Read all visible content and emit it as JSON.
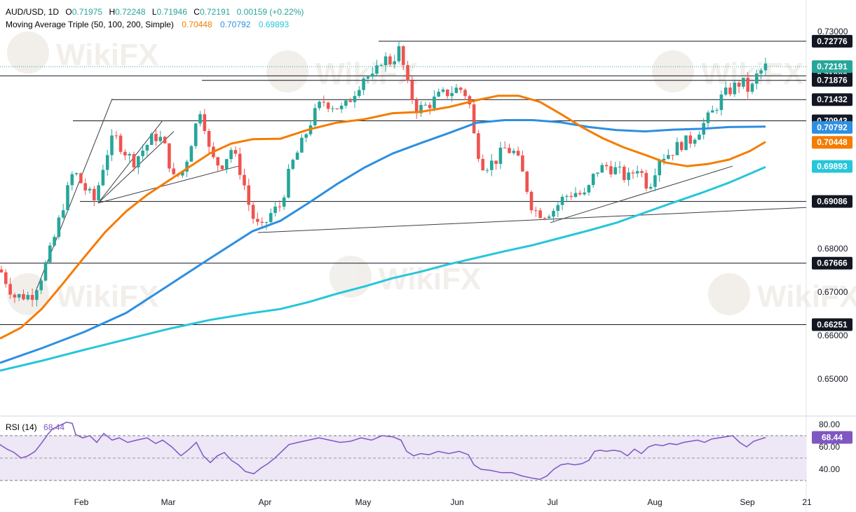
{
  "header": {
    "symbol": "AUD/USD, 1D",
    "o_label": "O",
    "o_value": "0.71975",
    "h_label": "H",
    "h_value": "0.72248",
    "l_label": "L",
    "l_value": "0.71946",
    "c_label": "C",
    "c_value": "0.72191",
    "change": "0.00159 (+0.22%)",
    "ma_title": "Moving Average Triple (50, 100, 200, Simple)",
    "ma_values": [
      "0.70448",
      "0.70792",
      "0.69893"
    ]
  },
  "colors": {
    "up": "#26a69a",
    "down": "#ef5350",
    "ma50": "#f57c00",
    "ma100": "#2e8fe0",
    "ma200": "#26c6da",
    "rsi": "#7e57c2",
    "rsi_band": "#ede7f6",
    "label_dark": "#131722",
    "watermark": "#e8e3dc"
  },
  "watermark": {
    "text": "WikiFX"
  },
  "chart_data": {
    "type": "candlestick",
    "timeframe": "1D",
    "x_ticks": [
      "Feb",
      "Mar",
      "Apr",
      "May",
      "Jun",
      "Jul",
      "Aug",
      "Sep",
      "21"
    ],
    "price_axis": {
      "ticks": [
        "0.73000",
        "0.68000",
        "0.67000",
        "0.66000",
        "0.65000"
      ],
      "range": [
        0.647,
        0.734
      ]
    },
    "levels": [
      {
        "label": "0.72776",
        "value": 0.72776
      },
      {
        "label": "0.71980",
        "value": 0.7198
      },
      {
        "label": "0.71876",
        "value": 0.71876
      },
      {
        "label": "0.71432",
        "value": 0.71432
      },
      {
        "label": "0.70943",
        "value": 0.70943
      },
      {
        "label": "0.69086",
        "value": 0.69086
      },
      {
        "label": "0.67666",
        "value": 0.67666
      },
      {
        "label": "0.66251",
        "value": 0.66251
      }
    ],
    "current_price": {
      "label": "0.72191",
      "value": 0.72191
    },
    "ma_labels": [
      {
        "label": "0.70792",
        "value": 0.70792,
        "series": "ma100"
      },
      {
        "label": "0.70448",
        "value": 0.70448,
        "series": "ma50"
      },
      {
        "label": "0.69893",
        "value": 0.69893,
        "series": "ma200"
      }
    ],
    "moving_averages": {
      "ma50": [
        [
          0,
          0.6593
        ],
        [
          30,
          0.6618
        ],
        [
          60,
          0.6662
        ],
        [
          90,
          0.672
        ],
        [
          120,
          0.678
        ],
        [
          150,
          0.6838
        ],
        [
          180,
          0.6886
        ],
        [
          210,
          0.6924
        ],
        [
          240,
          0.6956
        ],
        [
          270,
          0.6988
        ],
        [
          300,
          0.702
        ],
        [
          330,
          0.7042
        ],
        [
          360,
          0.7052
        ],
        [
          400,
          0.7053
        ],
        [
          440,
          0.7074
        ],
        [
          480,
          0.709
        ],
        [
          520,
          0.7098
        ],
        [
          560,
          0.7112
        ],
        [
          600,
          0.7115
        ],
        [
          640,
          0.7126
        ],
        [
          680,
          0.7142
        ],
        [
          710,
          0.7152
        ],
        [
          740,
          0.7152
        ],
        [
          770,
          0.7138
        ],
        [
          800,
          0.711
        ],
        [
          830,
          0.708
        ],
        [
          860,
          0.7054
        ],
        [
          890,
          0.7033
        ],
        [
          920,
          0.7016
        ],
        [
          950,
          0.6998
        ],
        [
          980,
          0.699
        ],
        [
          1010,
          0.6995
        ],
        [
          1040,
          0.7005
        ],
        [
          1070,
          0.7025
        ],
        [
          1092,
          0.7046
        ]
      ],
      "ma100": [
        [
          0,
          0.6537
        ],
        [
          60,
          0.6571
        ],
        [
          120,
          0.6608
        ],
        [
          180,
          0.6652
        ],
        [
          240,
          0.6715
        ],
        [
          300,
          0.6778
        ],
        [
          360,
          0.684
        ],
        [
          400,
          0.6864
        ],
        [
          440,
          0.6905
        ],
        [
          480,
          0.6948
        ],
        [
          520,
          0.6987
        ],
        [
          560,
          0.7019
        ],
        [
          600,
          0.7043
        ],
        [
          640,
          0.7066
        ],
        [
          680,
          0.709
        ],
        [
          720,
          0.7096
        ],
        [
          760,
          0.7096
        ],
        [
          800,
          0.7091
        ],
        [
          840,
          0.708
        ],
        [
          880,
          0.7073
        ],
        [
          920,
          0.707
        ],
        [
          960,
          0.7074
        ],
        [
          1000,
          0.7076
        ],
        [
          1040,
          0.708
        ],
        [
          1092,
          0.7081
        ]
      ],
      "ma200": [
        [
          0,
          0.6519
        ],
        [
          60,
          0.6542
        ],
        [
          120,
          0.6567
        ],
        [
          180,
          0.6591
        ],
        [
          240,
          0.6615
        ],
        [
          300,
          0.6636
        ],
        [
          360,
          0.6652
        ],
        [
          400,
          0.6661
        ],
        [
          440,
          0.6677
        ],
        [
          480,
          0.6696
        ],
        [
          520,
          0.6713
        ],
        [
          560,
          0.6732
        ],
        [
          600,
          0.6747
        ],
        [
          640,
          0.6764
        ],
        [
          680,
          0.6779
        ],
        [
          720,
          0.6794
        ],
        [
          760,
          0.6808
        ],
        [
          800,
          0.6825
        ],
        [
          840,
          0.6842
        ],
        [
          880,
          0.686
        ],
        [
          920,
          0.6883
        ],
        [
          960,
          0.6906
        ],
        [
          1000,
          0.6928
        ],
        [
          1040,
          0.6952
        ],
        [
          1092,
          0.6988
        ]
      ]
    },
    "candles_anchor_x": [
      0,
      1092
    ],
    "candles_path": [
      [
        0,
        0.6752
      ],
      [
        20,
        0.669
      ],
      [
        45,
        0.6692
      ],
      [
        60,
        0.674
      ],
      [
        75,
        0.681
      ],
      [
        90,
        0.69
      ],
      [
        105,
        0.698
      ],
      [
        120,
        0.694
      ],
      [
        135,
        0.691
      ],
      [
        150,
        0.701
      ],
      [
        163,
        0.706
      ],
      [
        175,
        0.703
      ],
      [
        190,
        0.7
      ],
      [
        205,
        0.703
      ],
      [
        220,
        0.706
      ],
      [
        232,
        0.705
      ],
      [
        248,
        0.696
      ],
      [
        262,
        0.698
      ],
      [
        275,
        0.706
      ],
      [
        287,
        0.713
      ],
      [
        300,
        0.701
      ],
      [
        315,
        0.699
      ],
      [
        330,
        0.703
      ],
      [
        345,
        0.697
      ],
      [
        358,
        0.688
      ],
      [
        372,
        0.684
      ],
      [
        386,
        0.688
      ],
      [
        400,
        0.69
      ],
      [
        415,
        0.699
      ],
      [
        430,
        0.704
      ],
      [
        445,
        0.71
      ],
      [
        460,
        0.714
      ],
      [
        475,
        0.713
      ],
      [
        490,
        0.712
      ],
      [
        505,
        0.716
      ],
      [
        520,
        0.72
      ],
      [
        533,
        0.719
      ],
      [
        545,
        0.724
      ],
      [
        558,
        0.723
      ],
      [
        570,
        0.726
      ],
      [
        582,
        0.717
      ],
      [
        595,
        0.712
      ],
      [
        610,
        0.713
      ],
      [
        625,
        0.715
      ],
      [
        640,
        0.716
      ],
      [
        655,
        0.717
      ],
      [
        668,
        0.715
      ],
      [
        678,
        0.704
      ],
      [
        690,
        0.699
      ],
      [
        705,
        0.7
      ],
      [
        720,
        0.703
      ],
      [
        735,
        0.702
      ],
      [
        748,
        0.696
      ],
      [
        760,
        0.689
      ],
      [
        775,
        0.688
      ],
      [
        790,
        0.689
      ],
      [
        805,
        0.692
      ],
      [
        820,
        0.693
      ],
      [
        835,
        0.692
      ],
      [
        850,
        0.698
      ],
      [
        865,
        0.699
      ],
      [
        880,
        0.698
      ],
      [
        895,
        0.696
      ],
      [
        910,
        0.699
      ],
      [
        925,
        0.694
      ],
      [
        940,
        0.701
      ],
      [
        955,
        0.702
      ],
      [
        970,
        0.704
      ],
      [
        985,
        0.705
      ],
      [
        1000,
        0.708
      ],
      [
        1015,
        0.711
      ],
      [
        1030,
        0.715
      ],
      [
        1045,
        0.717
      ],
      [
        1058,
        0.7185
      ],
      [
        1070,
        0.716
      ],
      [
        1080,
        0.72
      ],
      [
        1092,
        0.7219
      ]
    ],
    "trendlines": [
      {
        "from": [
          368,
          0.6837
        ],
        "to": [
          1221,
          0.69
        ]
      },
      {
        "from": [
          785,
          0.686
        ],
        "to": [
          1045,
          0.699
        ]
      },
      {
        "from": [
          50,
          0.6698
        ],
        "to": [
          160,
          0.7145
        ]
      },
      {
        "from": [
          140,
          0.6905
        ],
        "to": [
          248,
          0.707
        ]
      },
      {
        "from": [
          140,
          0.6905
        ],
        "to": [
          232,
          0.7095
        ]
      },
      {
        "from": [
          140,
          0.6905
        ],
        "to": [
          340,
          0.699
        ]
      }
    ],
    "level_segments": [
      {
        "x1": 540,
        "x2": 1150,
        "value": 0.72776
      },
      {
        "x1": 0,
        "x2": 1150,
        "value": 0.7198
      },
      {
        "x1": 288,
        "x2": 1150,
        "value": 0.71876
      },
      {
        "x1": 160,
        "x2": 1150,
        "value": 0.71432
      },
      {
        "x1": 104,
        "x2": 1150,
        "value": 0.70943
      },
      {
        "x1": 114,
        "x2": 1150,
        "value": 0.69086
      },
      {
        "x1": 0,
        "x2": 1150,
        "value": 0.67666
      },
      {
        "x1": 0,
        "x2": 1150,
        "value": 0.66251
      }
    ],
    "rsi": {
      "title": "RSI (14)",
      "value": "68.44",
      "value_num": 68.44,
      "ticks": [
        "80.00",
        "60.00",
        "40.00"
      ],
      "range": [
        28,
        85
      ],
      "overbought": 70,
      "middle": 50,
      "oversold": 30,
      "points": [
        [
          0,
          62
        ],
        [
          10,
          58
        ],
        [
          20,
          55
        ],
        [
          30,
          50
        ],
        [
          40,
          52
        ],
        [
          50,
          56
        ],
        [
          60,
          64
        ],
        [
          68,
          71
        ],
        [
          75,
          76
        ],
        [
          85,
          79
        ],
        [
          95,
          82
        ],
        [
          103,
          81
        ],
        [
          108,
          71
        ],
        [
          118,
          68
        ],
        [
          128,
          70
        ],
        [
          138,
          64
        ],
        [
          148,
          72
        ],
        [
          160,
          66
        ],
        [
          170,
          68
        ],
        [
          182,
          64
        ],
        [
          195,
          66
        ],
        [
          210,
          68
        ],
        [
          222,
          63
        ],
        [
          232,
          66
        ],
        [
          245,
          60
        ],
        [
          258,
          52
        ],
        [
          270,
          58
        ],
        [
          280,
          64
        ],
        [
          290,
          52
        ],
        [
          300,
          46
        ],
        [
          310,
          52
        ],
        [
          320,
          55
        ],
        [
          330,
          48
        ],
        [
          340,
          44
        ],
        [
          350,
          38
        ],
        [
          362,
          36
        ],
        [
          372,
          41
        ],
        [
          382,
          45
        ],
        [
          392,
          50
        ],
        [
          402,
          56
        ],
        [
          412,
          62
        ],
        [
          425,
          64
        ],
        [
          440,
          66
        ],
        [
          455,
          68
        ],
        [
          470,
          66
        ],
        [
          485,
          64
        ],
        [
          500,
          65
        ],
        [
          515,
          68
        ],
        [
          530,
          66
        ],
        [
          545,
          70
        ],
        [
          560,
          69
        ],
        [
          572,
          66
        ],
        [
          580,
          56
        ],
        [
          590,
          52
        ],
        [
          600,
          54
        ],
        [
          612,
          53
        ],
        [
          625,
          56
        ],
        [
          640,
          54
        ],
        [
          655,
          56
        ],
        [
          668,
          53
        ],
        [
          676,
          44
        ],
        [
          686,
          40
        ],
        [
          700,
          39
        ],
        [
          715,
          37
        ],
        [
          730,
          37
        ],
        [
          745,
          34
        ],
        [
          760,
          32
        ],
        [
          770,
          31
        ],
        [
          780,
          34
        ],
        [
          790,
          40
        ],
        [
          800,
          44
        ],
        [
          810,
          45
        ],
        [
          820,
          44
        ],
        [
          830,
          45
        ],
        [
          840,
          48
        ],
        [
          848,
          56
        ],
        [
          856,
          57
        ],
        [
          865,
          56
        ],
        [
          875,
          57
        ],
        [
          885,
          56
        ],
        [
          895,
          52
        ],
        [
          905,
          58
        ],
        [
          915,
          54
        ],
        [
          925,
          60
        ],
        [
          935,
          62
        ],
        [
          945,
          61
        ],
        [
          955,
          63
        ],
        [
          965,
          62
        ],
        [
          975,
          64
        ],
        [
          985,
          65
        ],
        [
          995,
          66
        ],
        [
          1005,
          64
        ],
        [
          1015,
          67
        ],
        [
          1025,
          68
        ],
        [
          1035,
          69
        ],
        [
          1045,
          70
        ],
        [
          1055,
          64
        ],
        [
          1065,
          60
        ],
        [
          1075,
          65
        ],
        [
          1085,
          67
        ],
        [
          1092,
          68.4
        ]
      ]
    }
  }
}
